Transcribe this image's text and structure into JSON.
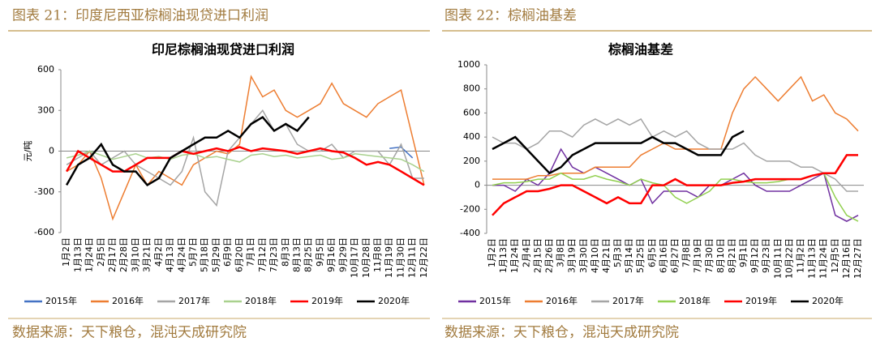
{
  "chart_data": [
    {
      "type": "line",
      "caption": "图表 21：印度尼西亚棕榈油现贷进口利润",
      "title": "印尼棕榈油现贷进口利润",
      "ylabel": "元/吨",
      "source": "数据来源：天下粮仓，混沌天成研究院",
      "categories": [
        "1月2日",
        "1月13日",
        "1月24日",
        "2月5日",
        "2月17日",
        "2月28日",
        "3月10日",
        "3月21日",
        "4月2日",
        "4月13日",
        "4月24日",
        "5月7日",
        "5月18日",
        "5月29日",
        "6月9日",
        "6月20日",
        "7月1日",
        "7月12日",
        "7月23日",
        "8月3日",
        "8月13日",
        "8月25日",
        "9月5日",
        "9月16日",
        "9月29日",
        "10月17日",
        "10月28日",
        "11月8日",
        "11月19日",
        "11月30日",
        "12月11日",
        "12月22日"
      ],
      "ylim": [
        -600,
        600
      ],
      "yticks": [
        -600,
        -300,
        0,
        300,
        600
      ],
      "series": [
        {
          "name": "2015年",
          "color": "#4472c4",
          "values": [
            null,
            null,
            null,
            null,
            null,
            null,
            null,
            null,
            null,
            null,
            null,
            null,
            null,
            null,
            null,
            null,
            null,
            null,
            null,
            null,
            null,
            null,
            null,
            null,
            null,
            null,
            null,
            null,
            20,
            30,
            -50,
            null
          ]
        },
        {
          "name": "2016年",
          "color": "#ed7d31",
          "values": [
            -150,
            -100,
            0,
            -200,
            -500,
            -300,
            -100,
            -250,
            -150,
            -200,
            -250,
            -100,
            -50,
            0,
            -20,
            50,
            550,
            400,
            450,
            300,
            250,
            300,
            350,
            500,
            350,
            300,
            250,
            350,
            400,
            450,
            100,
            -250
          ]
        },
        {
          "name": "2017年",
          "color": "#a5a5a5",
          "values": [
            -100,
            -50,
            0,
            -100,
            -50,
            0,
            -100,
            -150,
            -200,
            -250,
            -150,
            100,
            -300,
            -400,
            0,
            100,
            200,
            300,
            150,
            200,
            50,
            0,
            0,
            50,
            -50,
            0,
            0,
            0,
            -100,
            50,
            -200,
            -200
          ]
        },
        {
          "name": "2018年",
          "color": "#a9d18e",
          "values": [
            -50,
            -30,
            0,
            -30,
            -60,
            -40,
            -20,
            -50,
            -40,
            -60,
            -30,
            -20,
            -50,
            -40,
            -60,
            -80,
            -30,
            -20,
            -40,
            -30,
            -50,
            -40,
            -30,
            -60,
            -50,
            -20,
            -30,
            -40,
            -50,
            -60,
            -100,
            -150
          ]
        },
        {
          "name": "2019年",
          "color": "#ff0000",
          "values": [
            -150,
            0,
            -50,
            -100,
            -150,
            -150,
            -100,
            -50,
            -50,
            -50,
            0,
            -20,
            0,
            20,
            0,
            30,
            0,
            20,
            10,
            0,
            -20,
            0,
            20,
            0,
            -10,
            -50,
            -100,
            -80,
            -100,
            -150,
            -200,
            -250
          ]
        },
        {
          "name": "2020年",
          "color": "#000000",
          "values": [
            -250,
            -100,
            -50,
            50,
            -100,
            -150,
            -150,
            -250,
            -200,
            -50,
            0,
            50,
            100,
            100,
            150,
            100,
            200,
            250,
            150,
            200,
            150,
            250,
            null,
            null,
            null,
            null,
            null,
            null,
            null,
            null,
            null,
            null
          ]
        }
      ]
    },
    {
      "type": "line",
      "caption": "图表 22：棕榈油基差",
      "title": "棕榈油基差",
      "source": "数据来源：天下粮仓，混沌天成研究院",
      "categories": [
        "1月2日",
        "1月13日",
        "1月24日",
        "2月4日",
        "2月15日",
        "2月26日",
        "3月8日",
        "3月19日",
        "3月30日",
        "4月10日",
        "4月21日",
        "5月3日",
        "5月14日",
        "5月25日",
        "6月5日",
        "6月16日",
        "6月27日",
        "7月8日",
        "7月19日",
        "7月30日",
        "8月10日",
        "8月21日",
        "9月1日",
        "9月12日",
        "9月23日",
        "10月11日",
        "10月22日",
        "11月2日",
        "11月13日",
        "11月24日",
        "12月5日",
        "12月16日",
        "12月27日"
      ],
      "ylim": [
        -400,
        1000
      ],
      "yticks": [
        -400,
        -200,
        0,
        200,
        400,
        600,
        800,
        1000
      ],
      "series": [
        {
          "name": "2015年",
          "color": "#7030a0",
          "values": [
            0,
            0,
            -50,
            50,
            0,
            100,
            300,
            150,
            100,
            150,
            100,
            50,
            0,
            50,
            -150,
            -50,
            -50,
            -50,
            -100,
            0,
            0,
            50,
            100,
            0,
            -50,
            -50,
            -50,
            0,
            50,
            100,
            -250,
            -300,
            -250
          ]
        },
        {
          "name": "2016年",
          "color": "#ed7d31",
          "values": [
            50,
            50,
            50,
            50,
            80,
            80,
            100,
            100,
            100,
            150,
            150,
            150,
            150,
            250,
            300,
            350,
            300,
            300,
            300,
            300,
            300,
            600,
            800,
            900,
            800,
            700,
            800,
            900,
            700,
            750,
            600,
            550,
            450
          ]
        },
        {
          "name": "2017年",
          "color": "#a5a5a5",
          "values": [
            400,
            350,
            350,
            300,
            350,
            450,
            450,
            400,
            500,
            550,
            500,
            550,
            500,
            550,
            400,
            450,
            400,
            450,
            350,
            300,
            300,
            300,
            350,
            250,
            200,
            200,
            200,
            150,
            150,
            100,
            50,
            -50,
            -50
          ]
        },
        {
          "name": "2018年",
          "color": "#92d050",
          "values": [
            0,
            20,
            20,
            30,
            50,
            50,
            100,
            50,
            50,
            80,
            50,
            30,
            0,
            50,
            20,
            0,
            -100,
            -150,
            -100,
            -50,
            50,
            50,
            30,
            20,
            20,
            30,
            50,
            50,
            80,
            100,
            -100,
            -250,
            -300
          ]
        },
        {
          "name": "2019年",
          "color": "#ff0000",
          "values": [
            -250,
            -150,
            -100,
            -50,
            -50,
            -30,
            0,
            0,
            -50,
            -100,
            -150,
            -100,
            -150,
            -150,
            0,
            0,
            50,
            0,
            0,
            0,
            0,
            20,
            30,
            50,
            50,
            50,
            50,
            50,
            80,
            100,
            100,
            250,
            250
          ]
        },
        {
          "name": "2020年",
          "color": "#000000",
          "values": [
            300,
            350,
            400,
            300,
            200,
            100,
            150,
            250,
            300,
            350,
            350,
            350,
            350,
            350,
            400,
            350,
            350,
            300,
            250,
            250,
            250,
            400,
            450,
            null,
            null,
            null,
            null,
            null,
            null,
            null,
            null,
            null,
            null
          ]
        }
      ]
    }
  ]
}
